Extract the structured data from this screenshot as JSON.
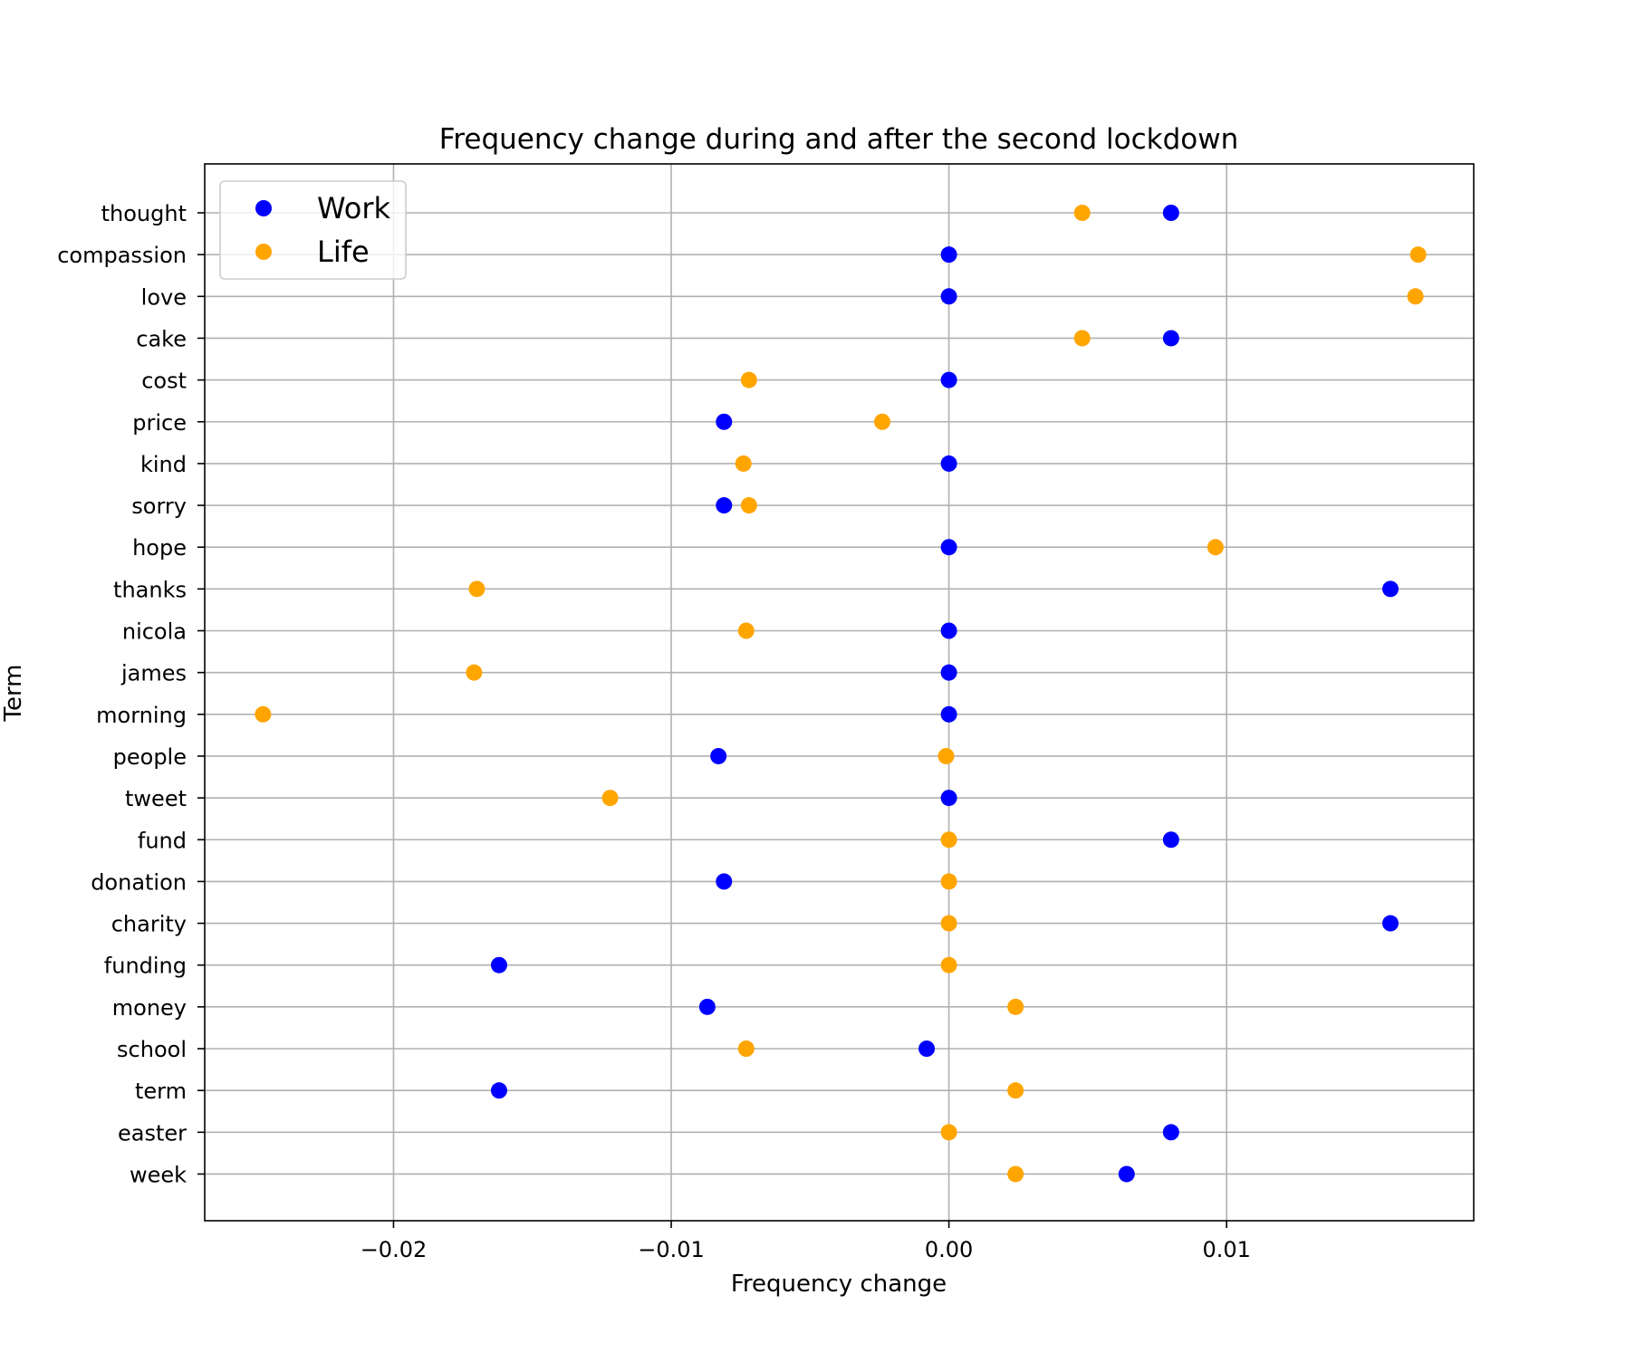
{
  "chart_data": {
    "type": "scatter",
    "title": "Frequency change during and after the second lockdown",
    "xlabel": "Frequency change",
    "ylabel": "Term",
    "xlim": [
      -0.0268,
      0.0189
    ],
    "x_ticks": [
      -0.02,
      -0.01,
      0.0,
      0.01
    ],
    "x_tick_labels": [
      "−0.02",
      "−0.01",
      "0.00",
      "0.01"
    ],
    "grid": true,
    "legend_position": "upper-left",
    "categories": [
      "thought",
      "compassion",
      "love",
      "cake",
      "cost",
      "price",
      "kind",
      "sorry",
      "hope",
      "thanks",
      "nicola",
      "james",
      "morning",
      "people",
      "tweet",
      "fund",
      "donation",
      "charity",
      "funding",
      "money",
      "school",
      "term",
      "easter",
      "week"
    ],
    "series": [
      {
        "name": "Work",
        "color": "#0000ff",
        "values": [
          0.008,
          0.0,
          0.0,
          0.008,
          0.0,
          -0.0081,
          0.0,
          -0.0081,
          0.0,
          0.0159,
          0.0,
          0.0,
          0.0,
          -0.0083,
          0.0,
          0.008,
          -0.0081,
          0.0159,
          -0.0162,
          -0.0087,
          -0.0008,
          -0.0162,
          0.008,
          0.0064
        ]
      },
      {
        "name": "Life",
        "color": "#ffa500",
        "values": [
          0.0048,
          0.0169,
          0.0168,
          0.0048,
          -0.0072,
          -0.0024,
          -0.0074,
          -0.0072,
          0.0096,
          -0.017,
          -0.0073,
          -0.0171,
          -0.0247,
          -0.0001,
          -0.0122,
          0.0,
          0.0,
          0.0,
          0.0,
          0.0024,
          -0.0073,
          0.0024,
          0.0,
          0.0024
        ]
      }
    ]
  }
}
